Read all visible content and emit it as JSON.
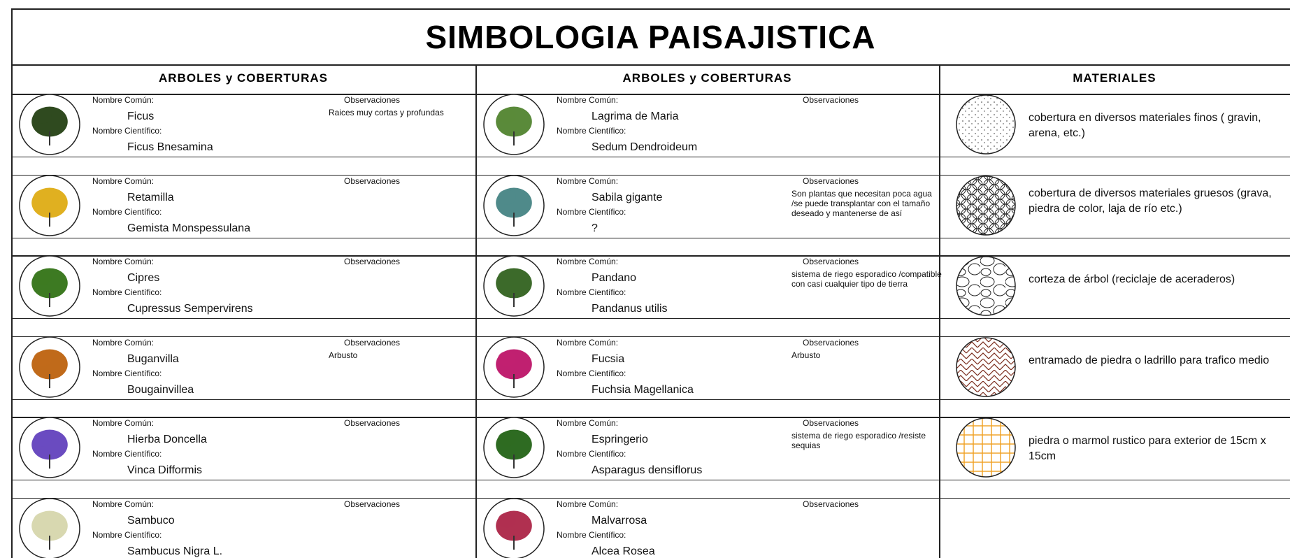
{
  "title": "SIMBOLOGIA PAISAJISTICA",
  "labels": {
    "common": "Nombre Común:",
    "scientific": "Nombre Científico:",
    "observations": "Observaciones"
  },
  "columns": [
    {
      "header": "ARBOLES y COBERTURAS",
      "plants": [
        {
          "common": "Ficus",
          "scientific": "Ficus Bnesamina",
          "observations": "Raices muy cortas y profundas"
        },
        {
          "common": "Retamilla",
          "scientific": "Gemista Monspessulana"
        },
        {
          "common": "Cipres",
          "scientific": "Cupressus Sempervirens"
        },
        {
          "common": "Buganvilla",
          "scientific": "Bougainvillea",
          "observations": "Arbusto"
        },
        {
          "common": "Hierba Doncella",
          "scientific": "Vinca Difformis"
        },
        {
          "common": "Sambuco",
          "scientific": "Sambucus Nigra L."
        }
      ]
    },
    {
      "header": "ARBOLES y COBERTURAS",
      "plants": [
        {
          "common": "Lagrima de Maria",
          "scientific": "Sedum Dendroideum"
        },
        {
          "common": "Sabila gigante",
          "scientific": "?",
          "observations": "Son plantas que necesitan poca agua /se puede transplantar con el tamaño deseado y mantenerse de así"
        },
        {
          "common": "Pandano",
          "scientific": "Pandanus utilis",
          "observations": "sistema de riego esporadico /compatible con casi cualquier tipo de tierra"
        },
        {
          "common": "Fucsia",
          "scientific": "Fuchsia Magellanica",
          "observations": "Arbusto"
        },
        {
          "common": "Espringerio",
          "scientific": "Asparagus densiflorus",
          "observations": "sistema de riego esporadico /resiste sequias"
        },
        {
          "common": "Malvarrosa",
          "scientific": "Alcea Rosea"
        }
      ]
    }
  ],
  "materials": {
    "header": "MATERIALES",
    "items": [
      "cobertura en diversos materiales finos ( gravin, arena, etc.)",
      "cobertura de diversos materiales gruesos (grava, piedra de color, laja de río etc.)",
      "corteza de árbol (reciclaje de aceraderos)",
      "entramado de piedra o ladrillo para trafico medio",
      "piedra o marmol rustico para exterior de 15cm x 15cm"
    ]
  }
}
